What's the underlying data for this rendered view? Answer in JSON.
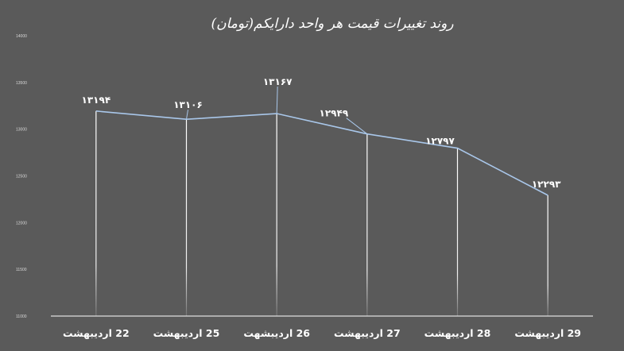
{
  "chart_data": {
    "type": "line",
    "title": "روند تغییرات قیمت هر واحد دارایکم(تومان)",
    "xlabel": "",
    "ylabel": "",
    "categories": [
      "22 اردیبهشت",
      "25 اردیبهشت",
      "26 اردیبشهت",
      "27 اردیبهشت",
      "28 اردیبهشت",
      "29 اردیبهشت"
    ],
    "series": [
      {
        "values": [
          13194,
          13106,
          13167,
          12949,
          12797,
          12293
        ],
        "labels": [
          "۱۳۱۹۴",
          "۱۳۱۰۶",
          "۱۳۱۶۷",
          "۱۲۹۴۹",
          "۱۲۷۹۷",
          "۱۲۲۹۳"
        ]
      }
    ],
    "yticks": [
      "11000",
      "11500",
      "12000",
      "12500",
      "13000",
      "13500",
      "14000"
    ],
    "ylim": [
      11000,
      14000
    ],
    "grid": false,
    "legend": "none",
    "colors": {
      "background": "#5a5a5a",
      "line": "#a9c7ea",
      "drop_line": "#ffffff",
      "axis": "#ffffff",
      "text": "#ffffff"
    }
  }
}
